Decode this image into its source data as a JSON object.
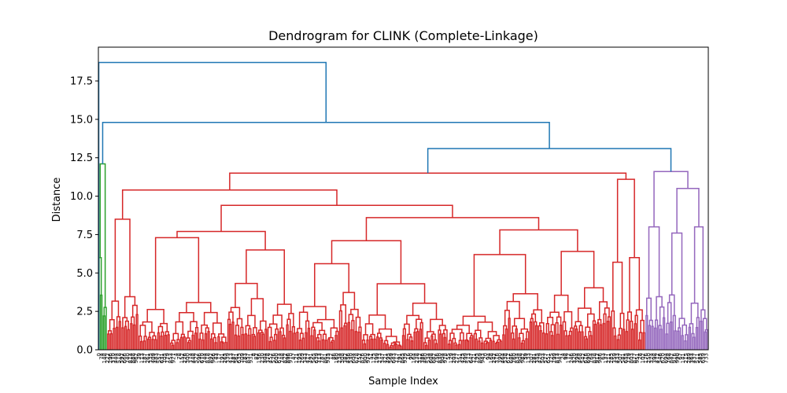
{
  "chart_data": {
    "type": "dendrogram",
    "title": "Dendrogram for CLINK (Complete-Linkage)",
    "xlabel": "Sample Index",
    "ylabel": "Distance",
    "ylim": [
      0,
      19.7
    ],
    "yticks": [
      "0.0",
      "2.5",
      "5.0",
      "7.5",
      "10.0",
      "12.5",
      "15.0",
      "17.5"
    ],
    "grid": false,
    "legend": "none",
    "n_leaves": 520,
    "link_color": "#1f77b4",
    "cluster_colors": {
      "green": "#2ca02c",
      "red": "#d62728",
      "purple": "#9467bd"
    },
    "top_merges": [
      {
        "name": "root",
        "height": 18.7
      },
      {
        "name": "main-split",
        "height": 14.8
      },
      {
        "name": "red-purple",
        "height": 13.1
      },
      {
        "name": "purple-cluster",
        "height": 11.6
      },
      {
        "name": "red-cluster",
        "height": 11.5
      },
      {
        "name": "green-cluster",
        "height": 12.1
      }
    ]
  }
}
